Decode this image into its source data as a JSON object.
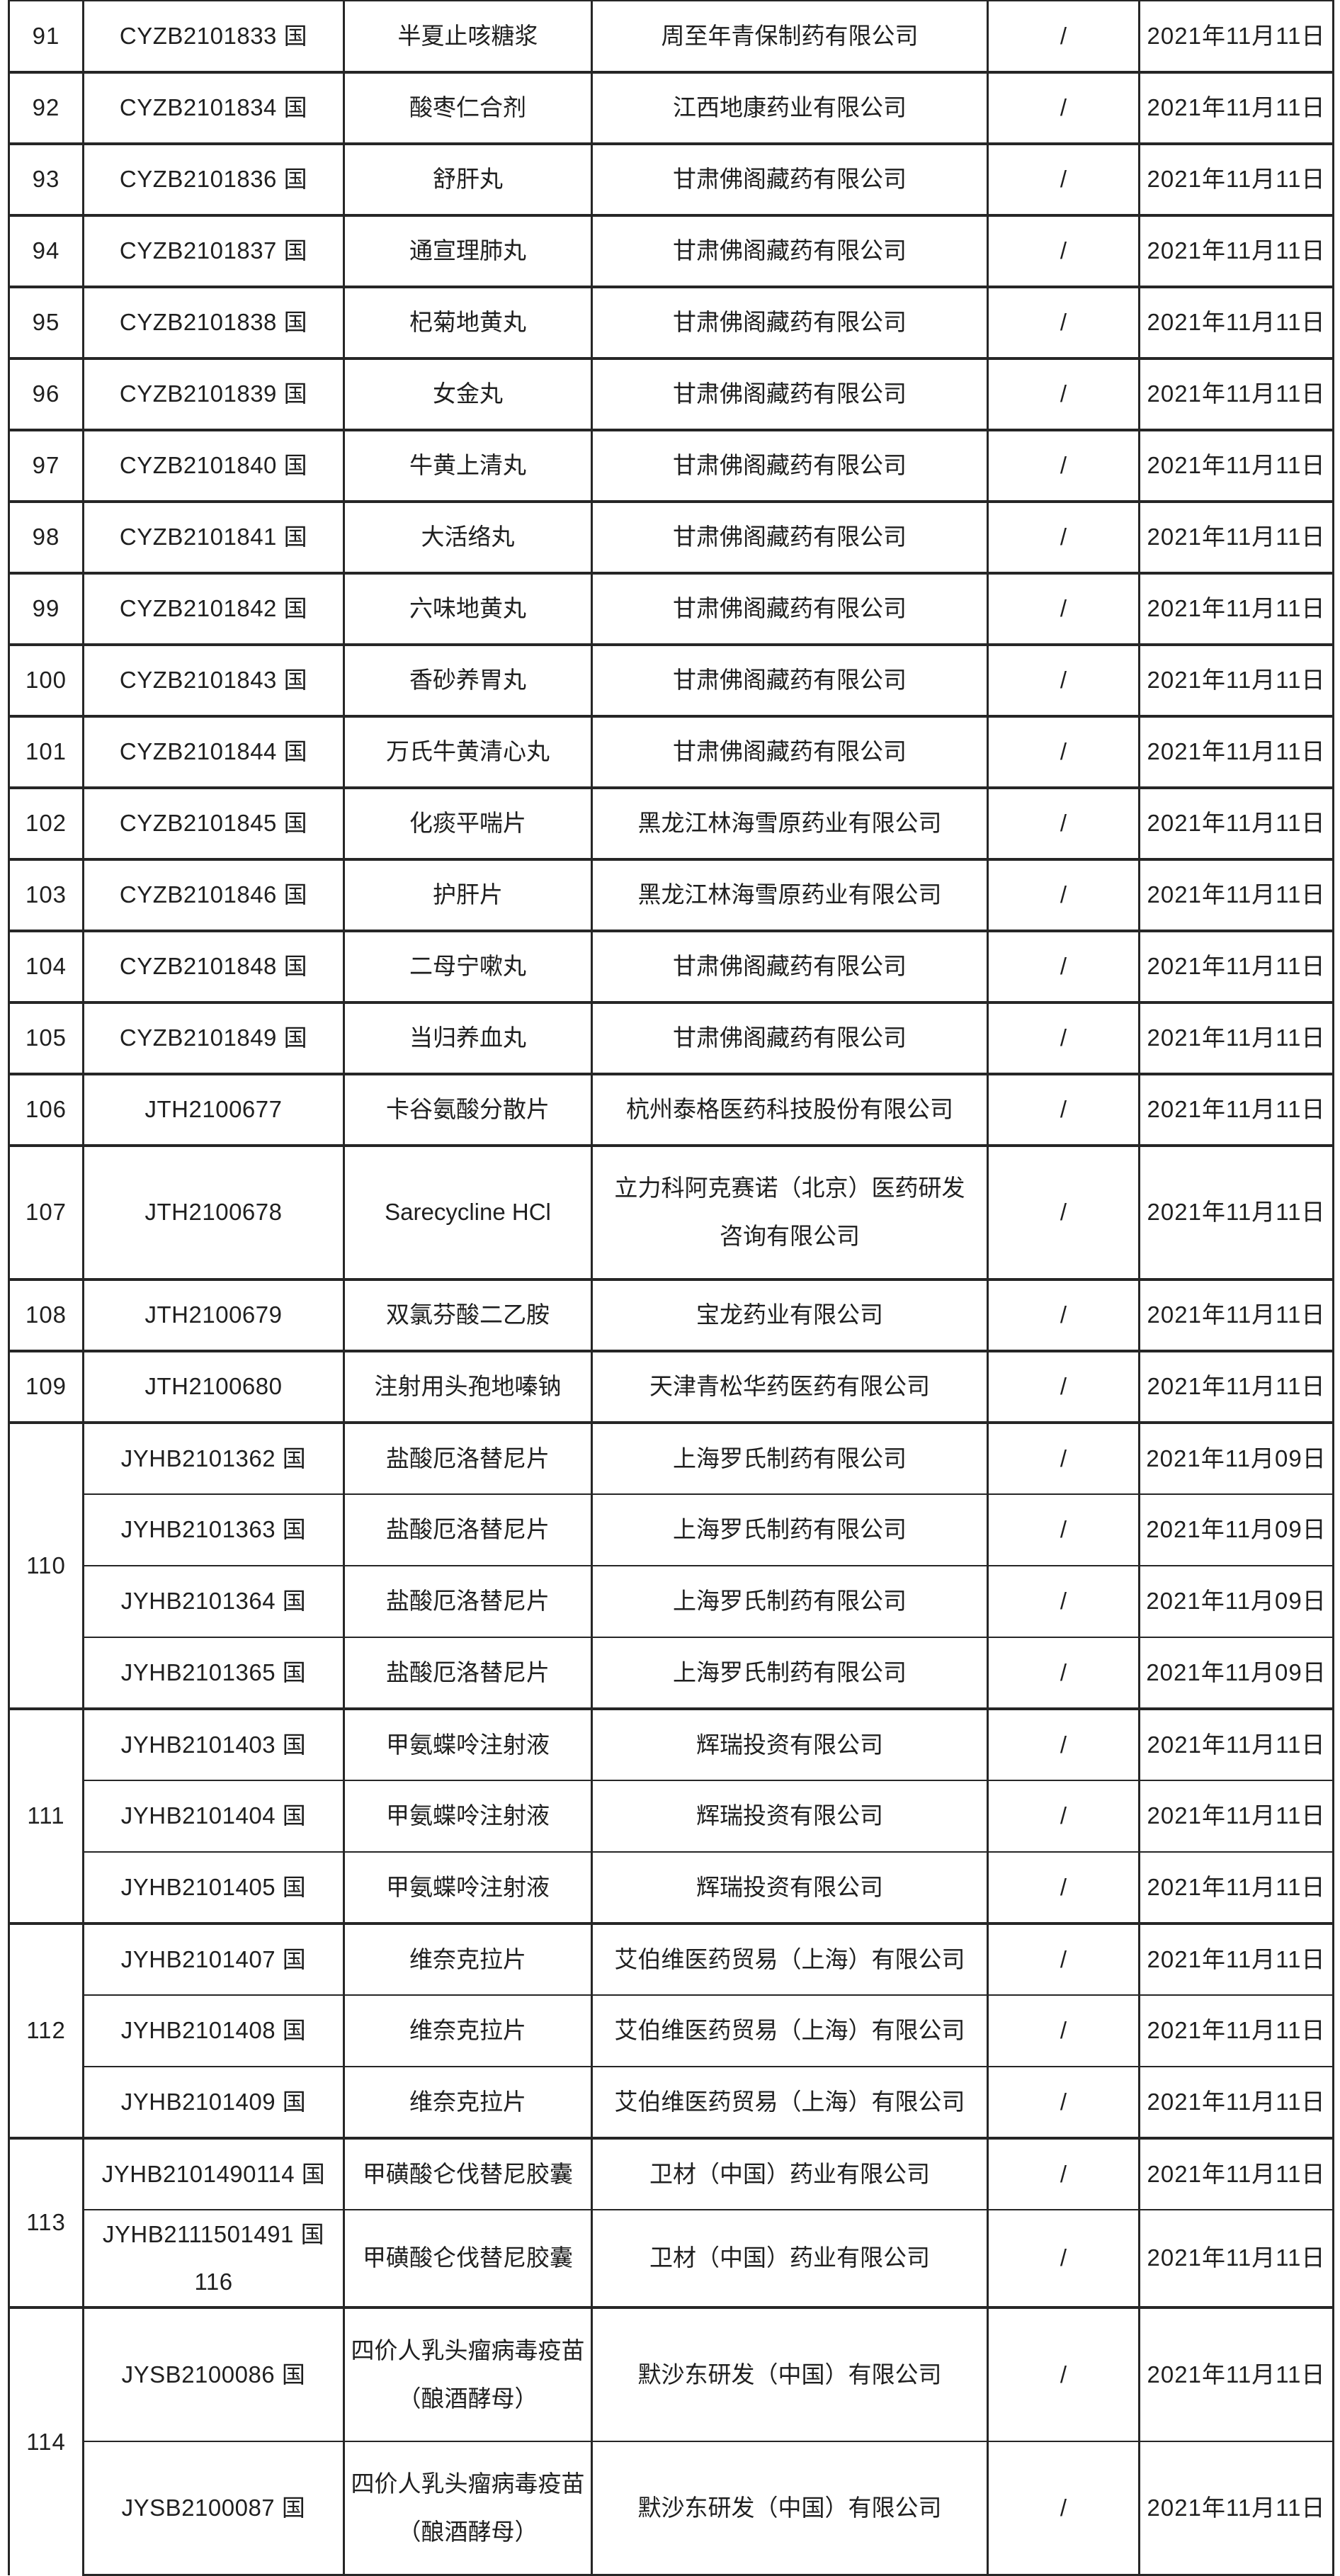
{
  "page": {
    "background": "#ffffff",
    "grid_line_color": "#262626",
    "text_color": "#1f1f1f",
    "remark_placeholder": "/"
  },
  "table": {
    "groups": [
      {
        "no": "91",
        "rows": [
          {
            "acceptance_no": "CYZB2101833 国",
            "drug_name": "半夏止咳糖浆",
            "company": "周至年青保制药有限公司",
            "remark": "/",
            "date": "2021年11月11日"
          }
        ]
      },
      {
        "no": "92",
        "rows": [
          {
            "acceptance_no": "CYZB2101834 国",
            "drug_name": "酸枣仁合剂",
            "company": "江西地康药业有限公司",
            "remark": "/",
            "date": "2021年11月11日"
          }
        ]
      },
      {
        "no": "93",
        "rows": [
          {
            "acceptance_no": "CYZB2101836 国",
            "drug_name": "舒肝丸",
            "company": "甘肃佛阁藏药有限公司",
            "remark": "/",
            "date": "2021年11月11日"
          }
        ]
      },
      {
        "no": "94",
        "rows": [
          {
            "acceptance_no": "CYZB2101837 国",
            "drug_name": "通宣理肺丸",
            "company": "甘肃佛阁藏药有限公司",
            "remark": "/",
            "date": "2021年11月11日"
          }
        ]
      },
      {
        "no": "95",
        "rows": [
          {
            "acceptance_no": "CYZB2101838 国",
            "drug_name": "杞菊地黄丸",
            "company": "甘肃佛阁藏药有限公司",
            "remark": "/",
            "date": "2021年11月11日"
          }
        ]
      },
      {
        "no": "96",
        "rows": [
          {
            "acceptance_no": "CYZB2101839 国",
            "drug_name": "女金丸",
            "company": "甘肃佛阁藏药有限公司",
            "remark": "/",
            "date": "2021年11月11日"
          }
        ]
      },
      {
        "no": "97",
        "rows": [
          {
            "acceptance_no": "CYZB2101840 国",
            "drug_name": "牛黄上清丸",
            "company": "甘肃佛阁藏药有限公司",
            "remark": "/",
            "date": "2021年11月11日"
          }
        ]
      },
      {
        "no": "98",
        "rows": [
          {
            "acceptance_no": "CYZB2101841 国",
            "drug_name": "大活络丸",
            "company": "甘肃佛阁藏药有限公司",
            "remark": "/",
            "date": "2021年11月11日"
          }
        ]
      },
      {
        "no": "99",
        "rows": [
          {
            "acceptance_no": "CYZB2101842 国",
            "drug_name": "六味地黄丸",
            "company": "甘肃佛阁藏药有限公司",
            "remark": "/",
            "date": "2021年11月11日"
          }
        ]
      },
      {
        "no": "100",
        "rows": [
          {
            "acceptance_no": "CYZB2101843 国",
            "drug_name": "香砂养胃丸",
            "company": "甘肃佛阁藏药有限公司",
            "remark": "/",
            "date": "2021年11月11日"
          }
        ]
      },
      {
        "no": "101",
        "rows": [
          {
            "acceptance_no": "CYZB2101844 国",
            "drug_name": "万氏牛黄清心丸",
            "company": "甘肃佛阁藏药有限公司",
            "remark": "/",
            "date": "2021年11月11日"
          }
        ]
      },
      {
        "no": "102",
        "rows": [
          {
            "acceptance_no": "CYZB2101845 国",
            "drug_name": "化痰平喘片",
            "company": "黑龙江林海雪原药业有限公司",
            "remark": "/",
            "date": "2021年11月11日"
          }
        ]
      },
      {
        "no": "103",
        "rows": [
          {
            "acceptance_no": "CYZB2101846 国",
            "drug_name": "护肝片",
            "company": "黑龙江林海雪原药业有限公司",
            "remark": "/",
            "date": "2021年11月11日"
          }
        ]
      },
      {
        "no": "104",
        "rows": [
          {
            "acceptance_no": "CYZB2101848 国",
            "drug_name": "二母宁嗽丸",
            "company": "甘肃佛阁藏药有限公司",
            "remark": "/",
            "date": "2021年11月11日"
          }
        ]
      },
      {
        "no": "105",
        "rows": [
          {
            "acceptance_no": "CYZB2101849 国",
            "drug_name": "当归养血丸",
            "company": "甘肃佛阁藏药有限公司",
            "remark": "/",
            "date": "2021年11月11日"
          }
        ]
      },
      {
        "no": "106",
        "rows": [
          {
            "acceptance_no": "JTH2100677",
            "drug_name": "卡谷氨酸分散片",
            "company": "杭州泰格医药科技股份有限公司",
            "remark": "/",
            "date": "2021年11月11日"
          }
        ]
      },
      {
        "no": "107",
        "rows": [
          {
            "acceptance_no": "JTH2100678",
            "drug_name": "Sarecycline HCl",
            "company": "立力科阿克赛诺（北京）医药研发\n咨询有限公司",
            "remark": "/",
            "date": "2021年11月11日"
          }
        ]
      },
      {
        "no": "108",
        "rows": [
          {
            "acceptance_no": "JTH2100679",
            "drug_name": "双氯芬酸二乙胺",
            "company": "宝龙药业有限公司",
            "remark": "/",
            "date": "2021年11月11日"
          }
        ]
      },
      {
        "no": "109",
        "rows": [
          {
            "acceptance_no": "JTH2100680",
            "drug_name": "注射用头孢地嗪钠",
            "company": "天津青松华药医药有限公司",
            "remark": "/",
            "date": "2021年11月11日"
          }
        ]
      },
      {
        "no": "110",
        "rows": [
          {
            "acceptance_no": "JYHB2101362 国",
            "drug_name": "盐酸厄洛替尼片",
            "company": "上海罗氏制药有限公司",
            "remark": "/",
            "date": "2021年11月09日"
          },
          {
            "acceptance_no": "JYHB2101363 国",
            "drug_name": "盐酸厄洛替尼片",
            "company": "上海罗氏制药有限公司",
            "remark": "/",
            "date": "2021年11月09日"
          },
          {
            "acceptance_no": "JYHB2101364 国",
            "drug_name": "盐酸厄洛替尼片",
            "company": "上海罗氏制药有限公司",
            "remark": "/",
            "date": "2021年11月09日"
          },
          {
            "acceptance_no": "JYHB2101365 国",
            "drug_name": "盐酸厄洛替尼片",
            "company": "上海罗氏制药有限公司",
            "remark": "/",
            "date": "2021年11月09日"
          }
        ]
      },
      {
        "no": "111",
        "rows": [
          {
            "acceptance_no": "JYHB2101403 国",
            "drug_name": "甲氨蝶呤注射液",
            "company": "辉瑞投资有限公司",
            "remark": "/",
            "date": "2021年11月11日"
          },
          {
            "acceptance_no": "JYHB2101404 国",
            "drug_name": "甲氨蝶呤注射液",
            "company": "辉瑞投资有限公司",
            "remark": "/",
            "date": "2021年11月11日"
          },
          {
            "acceptance_no": "JYHB2101405 国",
            "drug_name": "甲氨蝶呤注射液",
            "company": "辉瑞投资有限公司",
            "remark": "/",
            "date": "2021年11月11日"
          }
        ]
      },
      {
        "no": "112",
        "rows": [
          {
            "acceptance_no": "JYHB2101407 国",
            "drug_name": "维奈克拉片",
            "company": "艾伯维医药贸易（上海）有限公司",
            "remark": "/",
            "date": "2021年11月11日"
          },
          {
            "acceptance_no": "JYHB2101408 国",
            "drug_name": "维奈克拉片",
            "company": "艾伯维医药贸易（上海）有限公司",
            "remark": "/",
            "date": "2021年11月11日"
          },
          {
            "acceptance_no": "JYHB2101409 国",
            "drug_name": "维奈克拉片",
            "company": "艾伯维医药贸易（上海）有限公司",
            "remark": "/",
            "date": "2021年11月11日"
          }
        ]
      },
      {
        "no": "113",
        "rows": [
          {
            "acceptance_no": "JYHB2101490114 国",
            "drug_name": "甲磺酸仑伐替尼胶囊",
            "company": "卫材（中国）药业有限公司",
            "remark": "/",
            "date": "2021年11月11日"
          },
          {
            "acceptance_no": "JYHB2111501491 国 116",
            "drug_name": "甲磺酸仑伐替尼胶囊",
            "company": "卫材（中国）药业有限公司",
            "remark": "/",
            "date": "2021年11月11日"
          }
        ]
      },
      {
        "no": "114",
        "rows": [
          {
            "acceptance_no": "JYSB2100086 国",
            "drug_name": "四价人乳头瘤病毒疫苗\n（酿酒酵母）",
            "company": "默沙东研发（中国）有限公司",
            "remark": "/",
            "date": "2021年11月11日"
          },
          {
            "acceptance_no": "JYSB2100087 国",
            "drug_name": "四价人乳头瘤病毒疫苗\n（酿酒酵母）",
            "company": "默沙东研发（中国）有限公司",
            "remark": "/",
            "date": "2021年11月11日"
          }
        ]
      }
    ]
  }
}
